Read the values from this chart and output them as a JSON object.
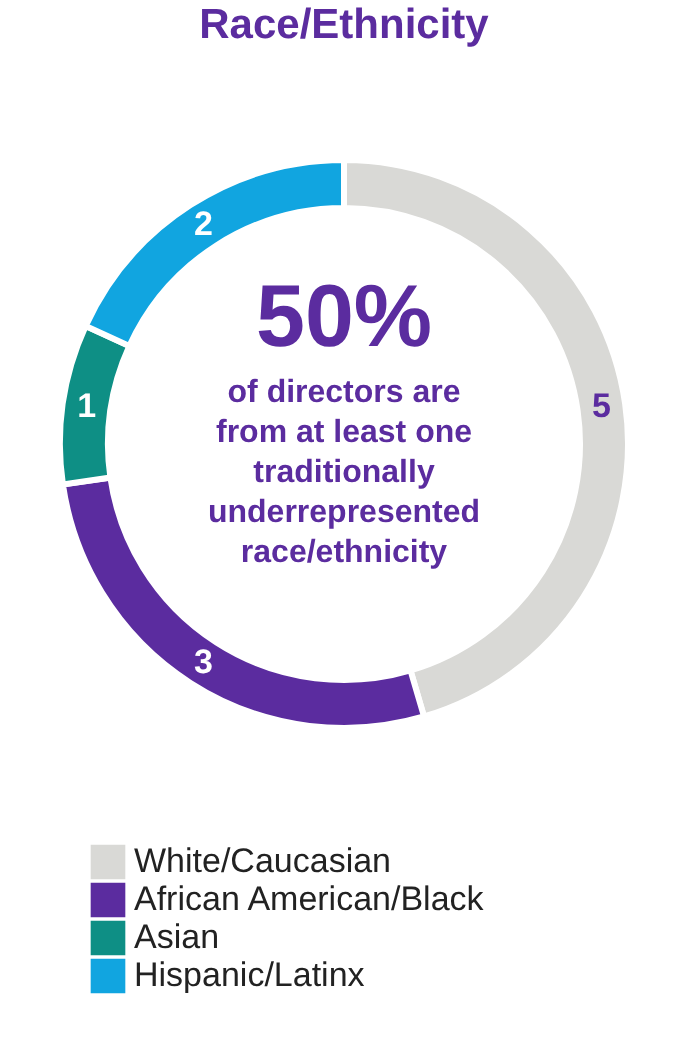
{
  "chart_data": {
    "type": "donut",
    "title": "Race/Ethnicity",
    "categories": [
      "White/Caucasian",
      "African American/Black",
      "Asian",
      "Hispanic/Latinx"
    ],
    "values": [
      5,
      3,
      1,
      2
    ],
    "colors": [
      "#d9d9d6",
      "#5b2c9f",
      "#0e8f85",
      "#11a5e0"
    ],
    "data_labels": true,
    "legend": "bottom",
    "annotations": [
      "50%",
      "of directors are from at least one traditionally underrepresented race/ethnicity"
    ]
  }
}
